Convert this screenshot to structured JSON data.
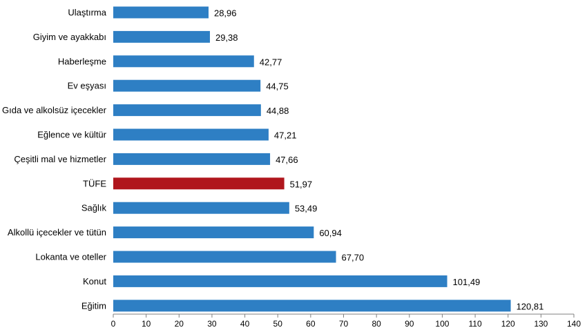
{
  "chart_data": {
    "type": "bar",
    "orientation": "horizontal",
    "categories": [
      "Ulaştırma",
      "Giyim ve ayakkabı",
      "Haberleşme",
      "Ev eşyası",
      "Gıda ve alkolsüz içecekler",
      "Eğlence ve kültür",
      "Çeşitli mal ve hizmetler",
      "TÜFE",
      "Sağlık",
      "Alkollü içecekler ve tütün",
      "Lokanta ve oteller",
      "Konut",
      "Eğitim"
    ],
    "values": [
      28.96,
      29.38,
      42.77,
      44.75,
      44.88,
      47.21,
      47.66,
      51.97,
      53.49,
      60.94,
      67.7,
      101.49,
      120.81
    ],
    "value_labels": [
      "28,96",
      "29,38",
      "42,77",
      "44,75",
      "44,88",
      "47,21",
      "47,66",
      "51,97",
      "53,49",
      "60,94",
      "67,70",
      "101,49",
      "120,81"
    ],
    "highlight_category": "TÜFE",
    "xlim": [
      0,
      140
    ],
    "xticks": [
      0,
      10,
      20,
      30,
      40,
      50,
      60,
      70,
      80,
      90,
      100,
      110,
      120,
      130,
      140
    ],
    "grid": false,
    "colors": {
      "bar": "#2E7FC4",
      "highlight": "#B0161D",
      "axis": "#7F7F7F"
    }
  }
}
